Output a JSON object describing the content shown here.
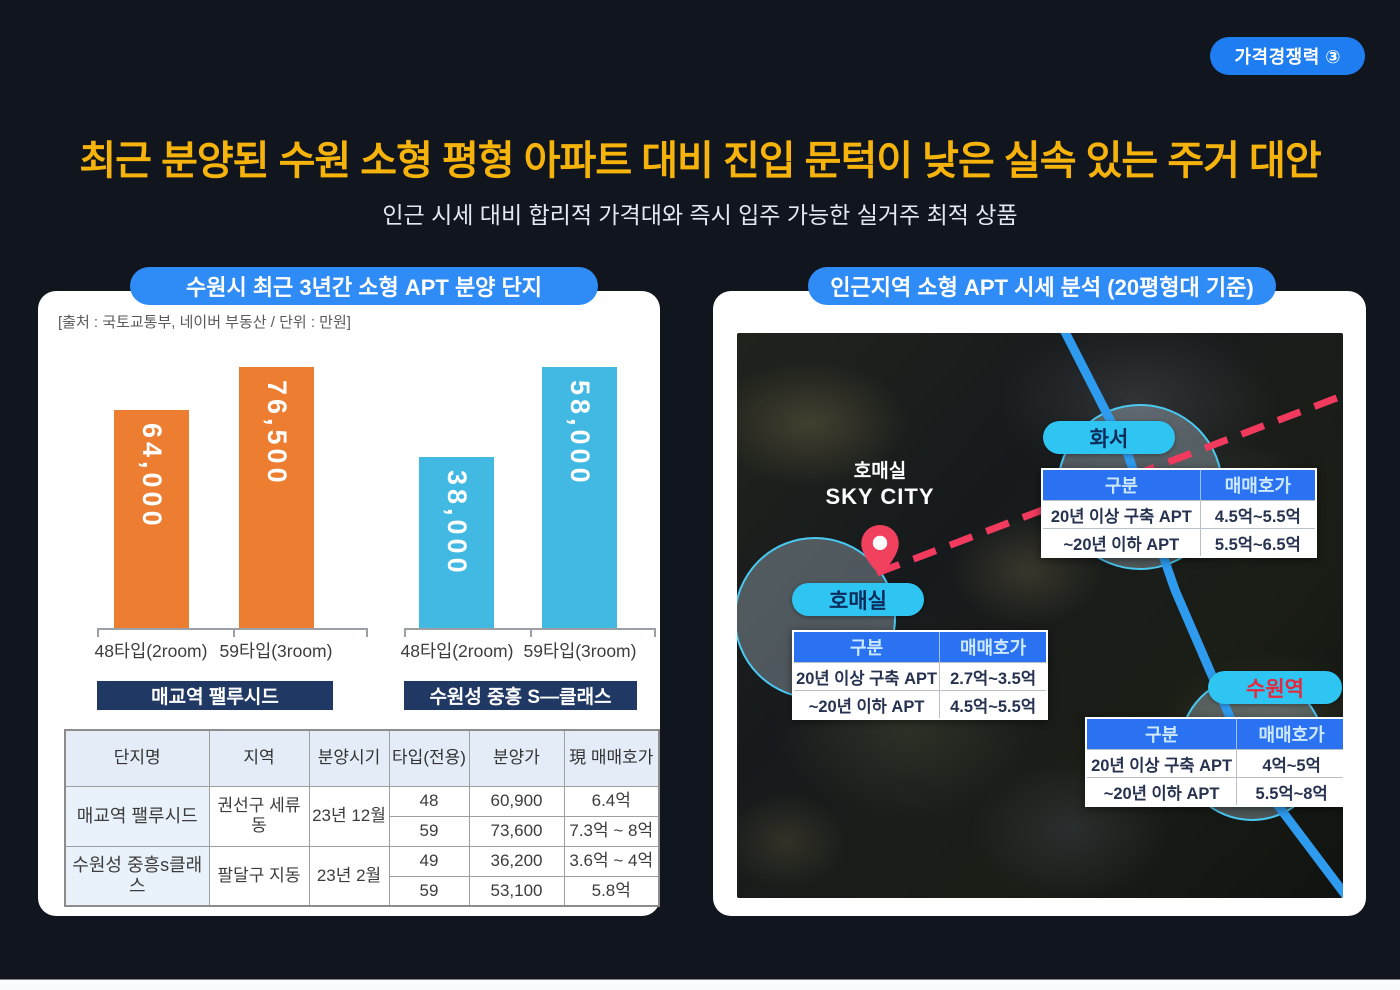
{
  "badge": {
    "label": "가격경쟁력 ③"
  },
  "header": {
    "title": "최근 분양된 수원 소형 평형 아파트 대비 진입 문턱이 낮은 실속 있는 주거 대안",
    "subtitle": "인근 시세 대비 합리적 가격대와 즉시 입주 가능한 실거주 최적 상품"
  },
  "left_panel": {
    "title": "수원시 최근 3년간 소형 APT 분양 단지",
    "source": "[출처 : 국토교통부, 네이버 부동산 / 단위 : 만원]",
    "table": {
      "headers": [
        "단지명",
        "지역",
        "분양시기",
        "타입(전용)",
        "분양가",
        "現 매매호가"
      ],
      "complexes": [
        {
          "name": "매교역 팰루시드",
          "district": "권선구 세류동",
          "date": "23년 12월",
          "units": [
            {
              "type": "48",
              "price": "60,900",
              "current": "6.4억"
            },
            {
              "type": "59",
              "price": "73,600",
              "current": "7.3억 ~ 8억"
            }
          ]
        },
        {
          "name": "수원성 중흥s클래스",
          "district": "팔달구 지동",
          "date": "23년 2월",
          "units": [
            {
              "type": "49",
              "price": "36,200",
              "current": "3.6억 ~ 4억"
            },
            {
              "type": "59",
              "price": "53,100",
              "current": "5.8억"
            }
          ]
        }
      ]
    }
  },
  "chart_data": {
    "type": "bar",
    "title": "수원시 최근 3년간 소형 APT 분양 단지",
    "unit": "만원",
    "categories": [
      "48타입(2room)",
      "59타입(3room)"
    ],
    "series": [
      {
        "name": "매교역 팰루시드",
        "color": "#ED7D31",
        "values": [
          64000,
          76500
        ],
        "labels": [
          "64,000",
          "76,500"
        ]
      },
      {
        "name": "수원성 중흥 S—클래스",
        "color": "#41B9E2",
        "values": [
          38000,
          58000
        ],
        "labels": [
          "38,000",
          "58,000"
        ]
      }
    ],
    "legend_position": "below",
    "grid": false
  },
  "right_panel": {
    "title": "인근지역 소형 APT 시세 분석 (20평형대 기준)",
    "pin_label": {
      "line1": "호매실",
      "line2": "SKY CITY"
    },
    "areas": [
      {
        "name": "화서",
        "name_color": "#0D2B5B",
        "table": {
          "headers": [
            "구분",
            "매매호가"
          ],
          "rows": [
            [
              "20년 이상 구축 APT",
              "4.5억~5.5억"
            ],
            [
              "~20년 이하 APT",
              "5.5억~6.5억"
            ]
          ]
        }
      },
      {
        "name": "호매실",
        "name_color": "#0D2B5B",
        "table": {
          "headers": [
            "구분",
            "매매호가"
          ],
          "rows": [
            [
              "20년 이상 구축 APT",
              "2.7억~3.5억"
            ],
            [
              "~20년 이하 APT",
              "4.5억~5.5억"
            ]
          ]
        }
      },
      {
        "name": "수원역",
        "name_color": "#E5293E",
        "table": {
          "headers": [
            "구분",
            "매매호가"
          ],
          "rows": [
            [
              "20년 이상 구축 APT",
              "4억~5억"
            ],
            [
              "~20년 이하 APT",
              "5.5억~8억"
            ]
          ]
        }
      }
    ],
    "colors": {
      "rail_line": "#2E9BEE",
      "planned_line": "#F13A5E",
      "highlight_circle": "#4AC9F2"
    }
  }
}
